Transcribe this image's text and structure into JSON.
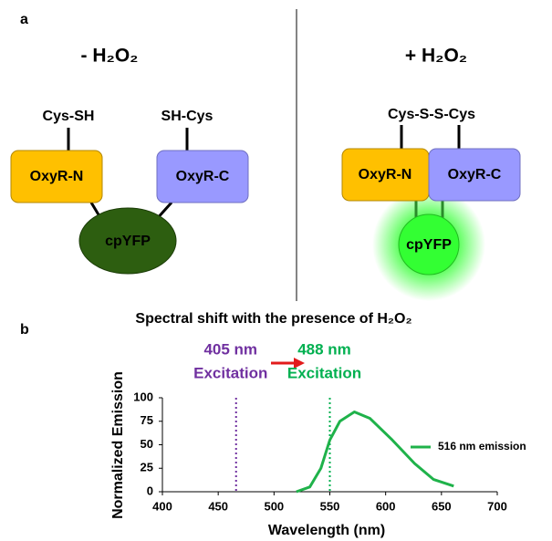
{
  "panel_a": {
    "label": "a",
    "left": {
      "title": "- H₂O₂",
      "thiols": [
        "Cys-SH",
        "SH-Cys"
      ],
      "domains": [
        "OxyR-N",
        "OxyR-C"
      ],
      "fluorophore": "cpYFP"
    },
    "right": {
      "title": "+ H₂O₂",
      "thiol": "Cys-S-S-Cys",
      "domains": [
        "OxyR-N",
        "OxyR-C"
      ],
      "fluorophore": "cpYFP"
    }
  },
  "panel_b": {
    "label": "b"
  },
  "chart_data": {
    "type": "line",
    "title": "Spectral shift with the presence of H₂O₂",
    "x_label": "Wavelength (nm)",
    "y_label": "Normalized Emission",
    "x": [
      520,
      532,
      542,
      550,
      559,
      572,
      586,
      606,
      626,
      643,
      661
    ],
    "series": [
      {
        "name": "516 nm emission",
        "color": "#1fb24a",
        "values": [
          0,
          5,
          25,
          55,
          75,
          85,
          78,
          55,
          30,
          13,
          6
        ]
      }
    ],
    "vlines": [
      {
        "x": 466,
        "color": "#7030a0",
        "text": [
          "405 nm",
          "Excitation"
        ]
      },
      {
        "x": 550,
        "color": "#00b050",
        "text": [
          "488 nm",
          "Excitation"
        ]
      }
    ],
    "xlim": [
      400,
      700
    ],
    "xticks": [
      400,
      450,
      500,
      550,
      600,
      650,
      700
    ],
    "ylim": [
      0,
      100
    ],
    "yticks": [
      0,
      25,
      50,
      75,
      100
    ],
    "grid": false,
    "legend": "right"
  }
}
